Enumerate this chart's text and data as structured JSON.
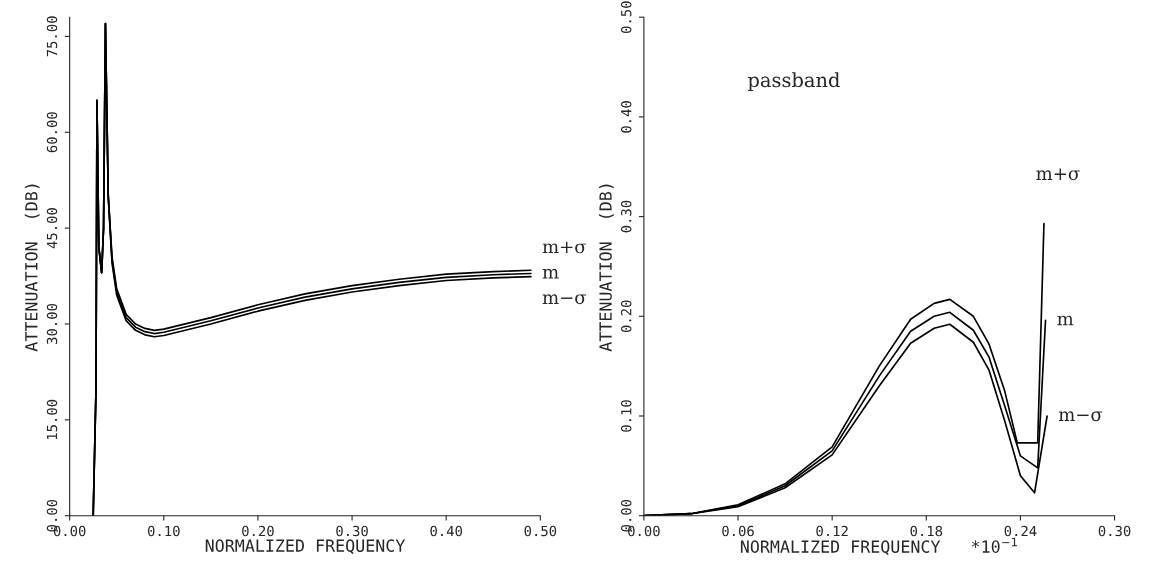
{
  "chart_data": [
    {
      "type": "line",
      "xlabel": "NORMALIZED FREQUENCY",
      "ylabel": "ATTENUATION  (DB)",
      "xlim": [
        0,
        0.5
      ],
      "ylim": [
        0,
        78
      ],
      "xticks": [
        {
          "value": 0,
          "label": "0.00"
        },
        {
          "value": 0.1,
          "label": "0.10"
        },
        {
          "value": 0.2,
          "label": "0.20"
        },
        {
          "value": 0.3,
          "label": "0.30"
        },
        {
          "value": 0.4,
          "label": "0.40"
        },
        {
          "value": 0.5,
          "label": "0.50"
        }
      ],
      "yticks": [
        {
          "value": 0,
          "label": "0.00"
        },
        {
          "value": 15,
          "label": "15.00"
        },
        {
          "value": 30,
          "label": "30.00"
        },
        {
          "value": 45,
          "label": "45.00"
        },
        {
          "value": 60,
          "label": "60.00"
        },
        {
          "value": 75,
          "label": "75.00"
        }
      ],
      "grid": false,
      "legend": false,
      "marker": "none",
      "line_style": "solid",
      "series": [
        {
          "name": "m+σ",
          "color": "#000000",
          "x": [
            0.025,
            0.028,
            0.029,
            0.031,
            0.034,
            0.036,
            0.038,
            0.041,
            0.045,
            0.05,
            0.06,
            0.07,
            0.08,
            0.09,
            0.1,
            0.15,
            0.2,
            0.25,
            0.3,
            0.35,
            0.4,
            0.45,
            0.49
          ],
          "values": [
            0,
            20,
            65,
            42,
            38,
            45,
            77,
            50,
            40.5,
            35.5,
            31.5,
            30,
            29.3,
            29,
            29.2,
            31,
            33,
            34.7,
            36,
            37,
            37.8,
            38.2,
            38.4
          ]
        },
        {
          "name": "m",
          "color": "#000000",
          "x": [
            0.025,
            0.028,
            0.029,
            0.031,
            0.034,
            0.036,
            0.038,
            0.041,
            0.045,
            0.05,
            0.06,
            0.07,
            0.08,
            0.09,
            0.1,
            0.15,
            0.2,
            0.25,
            0.3,
            0.35,
            0.4,
            0.45,
            0.49
          ],
          "values": [
            0,
            20,
            65,
            42,
            38,
            45,
            77,
            50,
            40,
            35,
            31,
            29.5,
            28.8,
            28.5,
            28.7,
            30.5,
            32.5,
            34.2,
            35.5,
            36.5,
            37.3,
            37.7,
            37.9
          ]
        },
        {
          "name": "m−σ",
          "color": "#000000",
          "x": [
            0.025,
            0.028,
            0.029,
            0.031,
            0.034,
            0.036,
            0.038,
            0.041,
            0.045,
            0.05,
            0.06,
            0.07,
            0.08,
            0.09,
            0.1,
            0.15,
            0.2,
            0.25,
            0.3,
            0.35,
            0.4,
            0.45,
            0.49
          ],
          "values": [
            0,
            20,
            65,
            42,
            38,
            45,
            77,
            50,
            39.5,
            34.5,
            30.5,
            29,
            28.3,
            28,
            28.2,
            30,
            32,
            33.7,
            35,
            36,
            36.8,
            37.2,
            37.4
          ]
        }
      ]
    },
    {
      "type": "line",
      "title": "passband",
      "xlabel": "NORMALIZED FREQUENCY   *10$^{−1}$",
      "ylabel": "ATTENUATION  (DB)",
      "xlim": [
        0,
        0.3
      ],
      "ylim": [
        0,
        0.5
      ],
      "xticks": [
        {
          "value": 0,
          "label": "0.00"
        },
        {
          "value": 0.06,
          "label": "0.06"
        },
        {
          "value": 0.12,
          "label": "0.12"
        },
        {
          "value": 0.18,
          "label": "0.18"
        },
        {
          "value": 0.24,
          "label": "0.24"
        },
        {
          "value": 0.3,
          "label": "0.30"
        }
      ],
      "yticks": [
        {
          "value": 0,
          "label": "0.00"
        },
        {
          "value": 0.1,
          "label": "0.10"
        },
        {
          "value": 0.2,
          "label": "0.20"
        },
        {
          "value": 0.3,
          "label": "0.30"
        },
        {
          "value": 0.4,
          "label": "0.40"
        },
        {
          "value": 0.5,
          "label": "0.50"
        }
      ],
      "grid": false,
      "legend": false,
      "marker": "none",
      "line_style": "solid",
      "series": [
        {
          "name": "m+σ",
          "color": "#000000",
          "x": [
            0,
            0.03,
            0.06,
            0.09,
            0.12,
            0.15,
            0.17,
            0.185,
            0.195,
            0.21,
            0.22,
            0.23,
            0.238,
            0.251,
            0.255
          ],
          "values": [
            0,
            0.002,
            0.011,
            0.032,
            0.069,
            0.15,
            0.197,
            0.213,
            0.217,
            0.2,
            0.172,
            0.125,
            0.073,
            0.073,
            0.293
          ]
        },
        {
          "name": "m",
          "color": "#000000",
          "x": [
            0,
            0.03,
            0.06,
            0.09,
            0.12,
            0.15,
            0.17,
            0.185,
            0.195,
            0.21,
            0.22,
            0.23,
            0.24,
            0.251,
            0.256
          ],
          "values": [
            0,
            0.002,
            0.01,
            0.03,
            0.065,
            0.14,
            0.185,
            0.2,
            0.204,
            0.186,
            0.159,
            0.11,
            0.06,
            0.048,
            0.196
          ]
        },
        {
          "name": "m−σ",
          "color": "#000000",
          "x": [
            0,
            0.03,
            0.06,
            0.09,
            0.12,
            0.15,
            0.17,
            0.185,
            0.195,
            0.21,
            0.22,
            0.23,
            0.24,
            0.249,
            0.257
          ],
          "values": [
            0,
            0.002,
            0.009,
            0.028,
            0.061,
            0.13,
            0.173,
            0.188,
            0.192,
            0.174,
            0.146,
            0.095,
            0.04,
            0.023,
            0.1
          ]
        }
      ]
    }
  ]
}
